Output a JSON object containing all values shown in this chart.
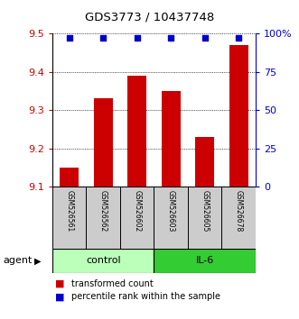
{
  "title": "GDS3773 / 10437748",
  "samples": [
    "GSM526561",
    "GSM526562",
    "GSM526602",
    "GSM526603",
    "GSM526605",
    "GSM526678"
  ],
  "bar_values": [
    9.15,
    9.33,
    9.39,
    9.35,
    9.23,
    9.47
  ],
  "percentile_values": [
    97,
    97,
    97,
    97,
    97,
    97
  ],
  "ylim_left": [
    9.1,
    9.5
  ],
  "ylim_right": [
    0,
    100
  ],
  "yticks_left": [
    9.1,
    9.2,
    9.3,
    9.4,
    9.5
  ],
  "yticks_right": [
    0,
    25,
    50,
    75,
    100
  ],
  "bar_color": "#cc0000",
  "dot_color": "#0000cc",
  "groups": [
    {
      "label": "control",
      "indices": [
        0,
        1,
        2
      ],
      "color": "#bbffbb"
    },
    {
      "label": "IL-6",
      "indices": [
        3,
        4,
        5
      ],
      "color": "#33cc33"
    }
  ],
  "agent_label": "agent",
  "legend_bar_label": "transformed count",
  "legend_dot_label": "percentile rank within the sample",
  "background_color": "#ffffff",
  "sample_box_color": "#cccccc",
  "group_border_color": "#000000"
}
